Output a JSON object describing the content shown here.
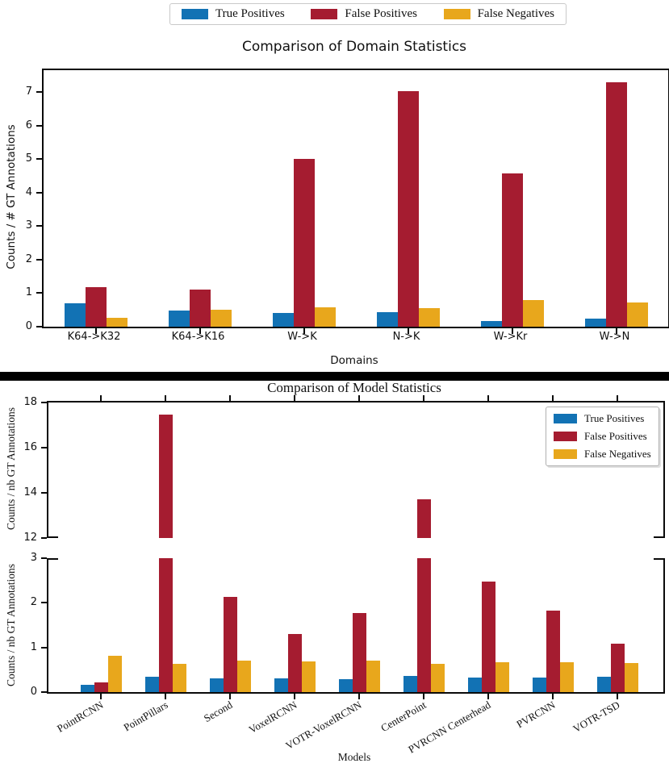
{
  "colors": {
    "true_positives": "#1272b4",
    "false_positives": "#a51c30",
    "false_negatives": "#e8a71c",
    "spine": "#0a0a0a",
    "separator": "#000000"
  },
  "figure1": {
    "title": "Comparison of Domain Statistics",
    "xlabel": "Domains",
    "ylabel": "Counts / # GT Annotations",
    "legend": [
      "True Positives",
      "False Positives",
      "False Negatives"
    ]
  },
  "figure2": {
    "title": "Comparison of Model Statistics",
    "xlabel": "Models",
    "ylabel": "Counts / nb GT Annotations",
    "legend": [
      "True Positives",
      "False Positives",
      "False Negatives"
    ]
  },
  "chart_data": [
    {
      "type": "bar",
      "title": "Comparison of Domain Statistics",
      "xlabel": "Domains",
      "ylabel": "Counts / # GT Annotations",
      "categories": [
        "K64->K32",
        "K64->K16",
        "W->K",
        "N->K",
        "W->Kr",
        "W->N"
      ],
      "series": [
        {
          "name": "True Positives",
          "color_key": "true_positives",
          "values": [
            0.7,
            0.48,
            0.4,
            0.43,
            0.18,
            0.25
          ]
        },
        {
          "name": "False Positives",
          "color_key": "false_positives",
          "values": [
            1.17,
            1.11,
            5.0,
            7.02,
            4.57,
            7.28
          ]
        },
        {
          "name": "False Negatives",
          "color_key": "false_negatives",
          "values": [
            0.27,
            0.51,
            0.58,
            0.55,
            0.8,
            0.72
          ]
        }
      ],
      "ylim": [
        0,
        7.65
      ],
      "yticks": [
        0,
        1,
        2,
        3,
        4,
        5,
        6,
        7
      ],
      "grid": false,
      "legend_position": "above"
    },
    {
      "type": "bar",
      "title": "Comparison of Model Statistics",
      "xlabel": "Models",
      "ylabel": "Counts / nb GT Annotations",
      "categories": [
        "PointRCNN",
        "PointPillars",
        "Second",
        "VoxelRCNN",
        "VOTR-VoxelRCNN",
        "CenterPoint",
        "PVRCNN Centerhead",
        "PVRCNN",
        "VOTR-TSD"
      ],
      "series": [
        {
          "name": "True Positives",
          "color_key": "true_positives",
          "values": [
            0.17,
            0.35,
            0.3,
            0.3,
            0.29,
            0.36,
            0.33,
            0.33,
            0.34
          ]
        },
        {
          "name": "False Positives",
          "color_key": "false_positives",
          "values": [
            0.21,
            17.45,
            2.13,
            1.31,
            1.77,
            13.72,
            2.47,
            1.83,
            1.08
          ]
        },
        {
          "name": "False Negatives",
          "color_key": "false_negatives",
          "values": [
            0.81,
            0.64,
            0.7,
            0.68,
            0.7,
            0.63,
            0.66,
            0.66,
            0.65
          ]
        }
      ],
      "broken_axis": {
        "top_panel": {
          "ylim": [
            12,
            18
          ],
          "yticks": [
            12,
            14,
            16,
            18
          ]
        },
        "bottom_panel": {
          "ylim": [
            0,
            3
          ],
          "yticks": [
            0,
            1,
            2,
            3
          ]
        }
      },
      "grid": false,
      "legend_position": "upper right"
    }
  ]
}
